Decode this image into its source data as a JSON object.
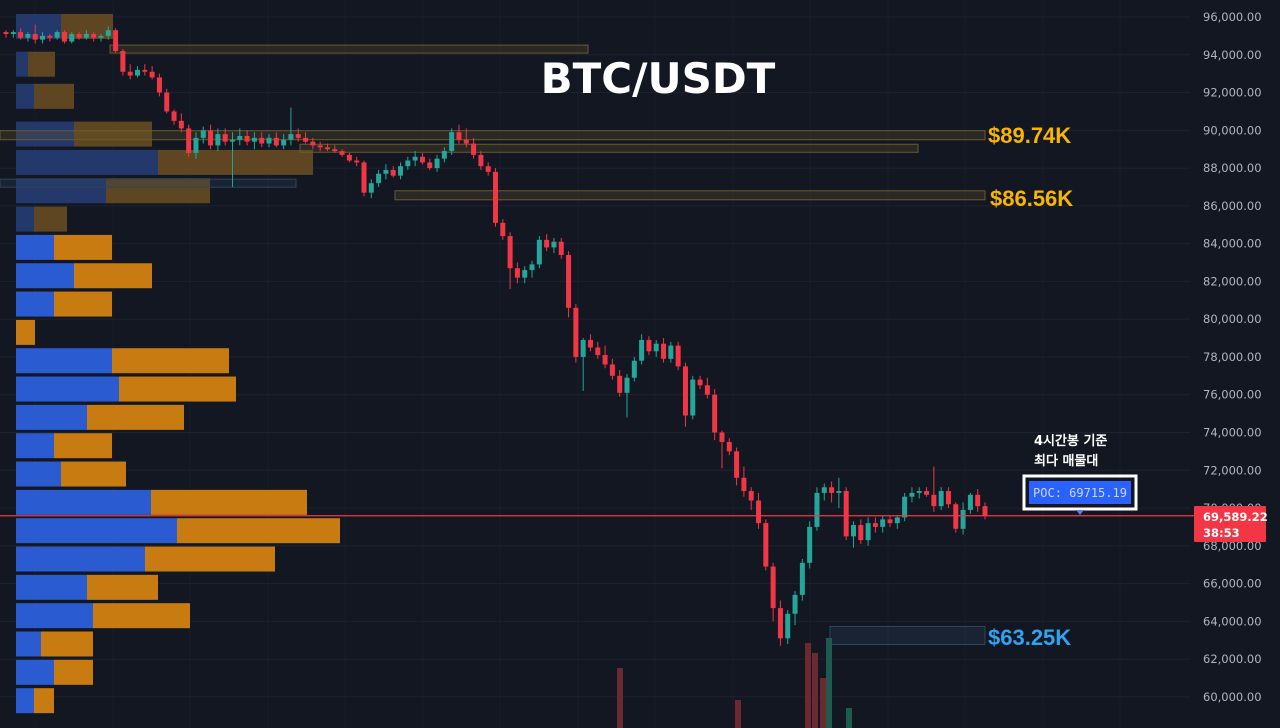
{
  "chart_data": {
    "type": "candlestick",
    "title": "BTC/USDT",
    "y_axis_ticks": [
      "96,000.00",
      "94,000.00",
      "92,000.00",
      "90,000.00",
      "88,000.00",
      "86,000.00",
      "84,000.00",
      "82,000.00",
      "80,000.00",
      "78,000.00",
      "76,000.00",
      "74,000.00",
      "72,000.00",
      "70,000.00",
      "68,000.00",
      "66,000.00",
      "64,000.00",
      "62,000.00",
      "60,000.00"
    ],
    "y_axis_values": [
      96000,
      94000,
      92000,
      90000,
      88000,
      86000,
      84000,
      82000,
      80000,
      78000,
      76000,
      74000,
      72000,
      70000,
      68000,
      66000,
      64000,
      62000,
      60000
    ],
    "ylim": [
      59000,
      97200
    ],
    "current_price": {
      "label": "69,589.22",
      "value": 69589.22,
      "countdown": "38:53",
      "color": "#f23645"
    },
    "poc": {
      "label": "POC: 69715.19",
      "value": 69715.19
    },
    "annotation": {
      "line1": "4시간봉 기준",
      "line2": "최다 매물대"
    },
    "zones": [
      {
        "label": "$89.74K",
        "value": 89740,
        "color": "#f7b500"
      },
      {
        "label": "$86.56K",
        "value": 86560,
        "color": "#f7b500"
      },
      {
        "label": "$63.25K",
        "value": 63250,
        "color": "#2ea3f2"
      }
    ],
    "volume_profile_note": "Volume profile on left: blue = buy volume, orange = sell volume per price row",
    "volume_profile": [
      {
        "price": 95500,
        "buy": 45,
        "sell": 52
      },
      {
        "price": 93500,
        "buy": 12,
        "sell": 27
      },
      {
        "price": 91800,
        "buy": 18,
        "sell": 40
      },
      {
        "price": 89800,
        "buy": 58,
        "sell": 78
      },
      {
        "price": 88300,
        "buy": 142,
        "sell": 155
      },
      {
        "price": 86800,
        "buy": 90,
        "sell": 104
      },
      {
        "price": 85300,
        "buy": 18,
        "sell": 33
      },
      {
        "price": 83800,
        "buy": 38,
        "sell": 58
      },
      {
        "price": 82300,
        "buy": 58,
        "sell": 78
      },
      {
        "price": 80800,
        "buy": 38,
        "sell": 58
      },
      {
        "price": 79300,
        "buy": 0,
        "sell": 19
      },
      {
        "price": 77800,
        "buy": 96,
        "sell": 117
      },
      {
        "price": 76300,
        "buy": 103,
        "sell": 117
      },
      {
        "price": 74800,
        "buy": 71,
        "sell": 97
      },
      {
        "price": 73300,
        "buy": 38,
        "sell": 58
      },
      {
        "price": 71800,
        "buy": 45,
        "sell": 65
      },
      {
        "price": 70300,
        "buy": 135,
        "sell": 156
      },
      {
        "price": 68800,
        "buy": 161,
        "sell": 163
      },
      {
        "price": 67300,
        "buy": 129,
        "sell": 130
      },
      {
        "price": 65800,
        "buy": 71,
        "sell": 71
      },
      {
        "price": 64300,
        "buy": 77,
        "sell": 97
      },
      {
        "price": 62800,
        "buy": 25,
        "sell": 52
      },
      {
        "price": 61300,
        "buy": 38,
        "sell": 39
      },
      {
        "price": 59800,
        "buy": 18,
        "sell": 20
      }
    ],
    "candles": [
      [
        95200,
        95300,
        94900,
        95100
      ],
      [
        95100,
        95300,
        94900,
        95200
      ],
      [
        95200,
        95400,
        94800,
        94900
      ],
      [
        94900,
        95200,
        94700,
        95100
      ],
      [
        95100,
        95600,
        94600,
        94800
      ],
      [
        94800,
        95200,
        94600,
        95000
      ],
      [
        95000,
        95100,
        94700,
        94900
      ],
      [
        94900,
        95300,
        94800,
        95200
      ],
      [
        95200,
        95300,
        94600,
        94700
      ],
      [
        94700,
        95200,
        94600,
        95100
      ],
      [
        95100,
        95200,
        94800,
        94900
      ],
      [
        94900,
        95300,
        94800,
        95100
      ],
      [
        95100,
        95200,
        94700,
        94900
      ],
      [
        94900,
        95100,
        94700,
        95000
      ],
      [
        95000,
        95500,
        94800,
        95300
      ],
      [
        95300,
        95400,
        94100,
        94200
      ],
      [
        94200,
        94300,
        92900,
        93100
      ],
      [
        93100,
        93500,
        92700,
        92900
      ],
      [
        92900,
        93400,
        92800,
        93200
      ],
      [
        93200,
        93500,
        92900,
        93100
      ],
      [
        93100,
        93400,
        92700,
        92800
      ],
      [
        92800,
        93000,
        91800,
        92000
      ],
      [
        92000,
        92200,
        90900,
        91000
      ],
      [
        91000,
        91100,
        90300,
        90500
      ],
      [
        90500,
        90900,
        89900,
        90100
      ],
      [
        90100,
        90300,
        88600,
        88800
      ],
      [
        88800,
        89900,
        88500,
        89600
      ],
      [
        89600,
        90200,
        89300,
        90000
      ],
      [
        90000,
        90300,
        89000,
        89200
      ],
      [
        89200,
        90100,
        88900,
        89800
      ],
      [
        89800,
        90100,
        89200,
        89400
      ],
      [
        89400,
        89900,
        87000,
        89500
      ],
      [
        89500,
        90100,
        89200,
        89700
      ],
      [
        89700,
        90000,
        89200,
        89400
      ],
      [
        89400,
        89900,
        89000,
        89600
      ],
      [
        89600,
        89900,
        89100,
        89300
      ],
      [
        89300,
        89800,
        89100,
        89600
      ],
      [
        89600,
        89900,
        89100,
        89200
      ],
      [
        89200,
        89800,
        89000,
        89500
      ],
      [
        89500,
        91200,
        89200,
        89800
      ],
      [
        89800,
        90100,
        89400,
        89600
      ],
      [
        89600,
        89900,
        89300,
        89400
      ],
      [
        89400,
        89600,
        89000,
        89200
      ],
      [
        89200,
        89400,
        88900,
        89100
      ],
      [
        89100,
        89300,
        88900,
        89000
      ],
      [
        89000,
        89200,
        88800,
        88900
      ],
      [
        88900,
        89000,
        88600,
        88700
      ],
      [
        88700,
        88800,
        88300,
        88400
      ],
      [
        88400,
        88600,
        88100,
        88300
      ],
      [
        88300,
        88400,
        86500,
        86700
      ],
      [
        86700,
        87400,
        86400,
        87200
      ],
      [
        87200,
        87900,
        87000,
        87700
      ],
      [
        87700,
        88200,
        87400,
        87900
      ],
      [
        87900,
        88100,
        87500,
        87600
      ],
      [
        87600,
        88300,
        87400,
        88100
      ],
      [
        88100,
        88600,
        87900,
        88400
      ],
      [
        88400,
        88900,
        88100,
        88600
      ],
      [
        88600,
        88800,
        88200,
        88300
      ],
      [
        88300,
        88500,
        87900,
        88000
      ],
      [
        88000,
        88700,
        87800,
        88500
      ],
      [
        88500,
        89100,
        88300,
        88900
      ],
      [
        88900,
        90100,
        88700,
        89900
      ],
      [
        89900,
        90300,
        89300,
        89500
      ],
      [
        89500,
        90100,
        89100,
        89300
      ],
      [
        89300,
        89600,
        88500,
        88700
      ],
      [
        88700,
        88900,
        87900,
        88100
      ],
      [
        88100,
        88300,
        87600,
        87800
      ],
      [
        87800,
        88000,
        84900,
        85100
      ],
      [
        85100,
        85300,
        84200,
        84400
      ],
      [
        84400,
        84600,
        81600,
        82700
      ],
      [
        82700,
        83000,
        81900,
        82200
      ],
      [
        82200,
        82800,
        81900,
        82600
      ],
      [
        82600,
        83100,
        82200,
        82900
      ],
      [
        82900,
        84400,
        82700,
        84200
      ],
      [
        84200,
        84500,
        83600,
        83800
      ],
      [
        83800,
        84300,
        83500,
        84100
      ],
      [
        84100,
        84300,
        83200,
        83400
      ],
      [
        83400,
        83600,
        80100,
        80600
      ],
      [
        80600,
        80800,
        77700,
        78000
      ],
      [
        78000,
        79000,
        76200,
        78900
      ],
      [
        78900,
        79200,
        78300,
        78500
      ],
      [
        78500,
        78800,
        77900,
        78100
      ],
      [
        78100,
        78600,
        77400,
        77600
      ],
      [
        77600,
        77900,
        76800,
        77000
      ],
      [
        77000,
        77300,
        75900,
        76100
      ],
      [
        76100,
        77100,
        74800,
        76900
      ],
      [
        76900,
        78000,
        76700,
        77800
      ],
      [
        77800,
        79200,
        77600,
        78900
      ],
      [
        78900,
        79100,
        78100,
        78300
      ],
      [
        78300,
        78900,
        78000,
        78700
      ],
      [
        78700,
        79000,
        77700,
        77900
      ],
      [
        77900,
        78800,
        77700,
        78600
      ],
      [
        78600,
        78800,
        77300,
        77500
      ],
      [
        77500,
        77700,
        74300,
        74900
      ],
      [
        74900,
        77000,
        74700,
        76800
      ],
      [
        76800,
        77000,
        76300,
        76500
      ],
      [
        76500,
        76900,
        75800,
        76000
      ],
      [
        76000,
        76300,
        73600,
        74000
      ],
      [
        74000,
        74100,
        72100,
        73500
      ],
      [
        73500,
        73700,
        72800,
        73000
      ],
      [
        73000,
        73200,
        71200,
        71600
      ],
      [
        71600,
        72200,
        70600,
        70900
      ],
      [
        70900,
        71100,
        69900,
        70400
      ],
      [
        70400,
        70800,
        68900,
        69200
      ],
      [
        69200,
        69400,
        66700,
        66900
      ],
      [
        66900,
        67100,
        64000,
        64700
      ],
      [
        64700,
        65100,
        62700,
        63100
      ],
      [
        63100,
        64600,
        62800,
        64400
      ],
      [
        64400,
        65600,
        63800,
        65400
      ],
      [
        65400,
        67300,
        65100,
        67100
      ],
      [
        67100,
        69300,
        66800,
        69000
      ],
      [
        69000,
        71100,
        68800,
        70800
      ],
      [
        70800,
        71300,
        70400,
        71100
      ],
      [
        71100,
        71400,
        70300,
        70800
      ],
      [
        70800,
        71600,
        70000,
        70900
      ],
      [
        70900,
        71100,
        68300,
        68500
      ],
      [
        68500,
        69300,
        67900,
        69100
      ],
      [
        69100,
        69400,
        68100,
        68300
      ],
      [
        68300,
        69500,
        68000,
        69200
      ],
      [
        69200,
        69500,
        68700,
        69000
      ],
      [
        69000,
        69600,
        68700,
        69400
      ],
      [
        69400,
        69600,
        69000,
        69200
      ],
      [
        69200,
        69600,
        68900,
        69500
      ],
      [
        69500,
        70800,
        69300,
        70600
      ],
      [
        70600,
        71100,
        70300,
        70800
      ],
      [
        70800,
        71100,
        70500,
        70900
      ],
      [
        70900,
        71100,
        70600,
        70700
      ],
      [
        70700,
        72200,
        69800,
        70100
      ],
      [
        70100,
        71100,
        69900,
        70900
      ],
      [
        70900,
        71100,
        70000,
        70200
      ],
      [
        70200,
        70300,
        68700,
        68900
      ],
      [
        68900,
        70300,
        68600,
        69900
      ],
      [
        69900,
        70800,
        69700,
        70700
      ],
      [
        70700,
        71000,
        69800,
        70100
      ],
      [
        70100,
        70300,
        69400,
        69589
      ]
    ]
  }
}
